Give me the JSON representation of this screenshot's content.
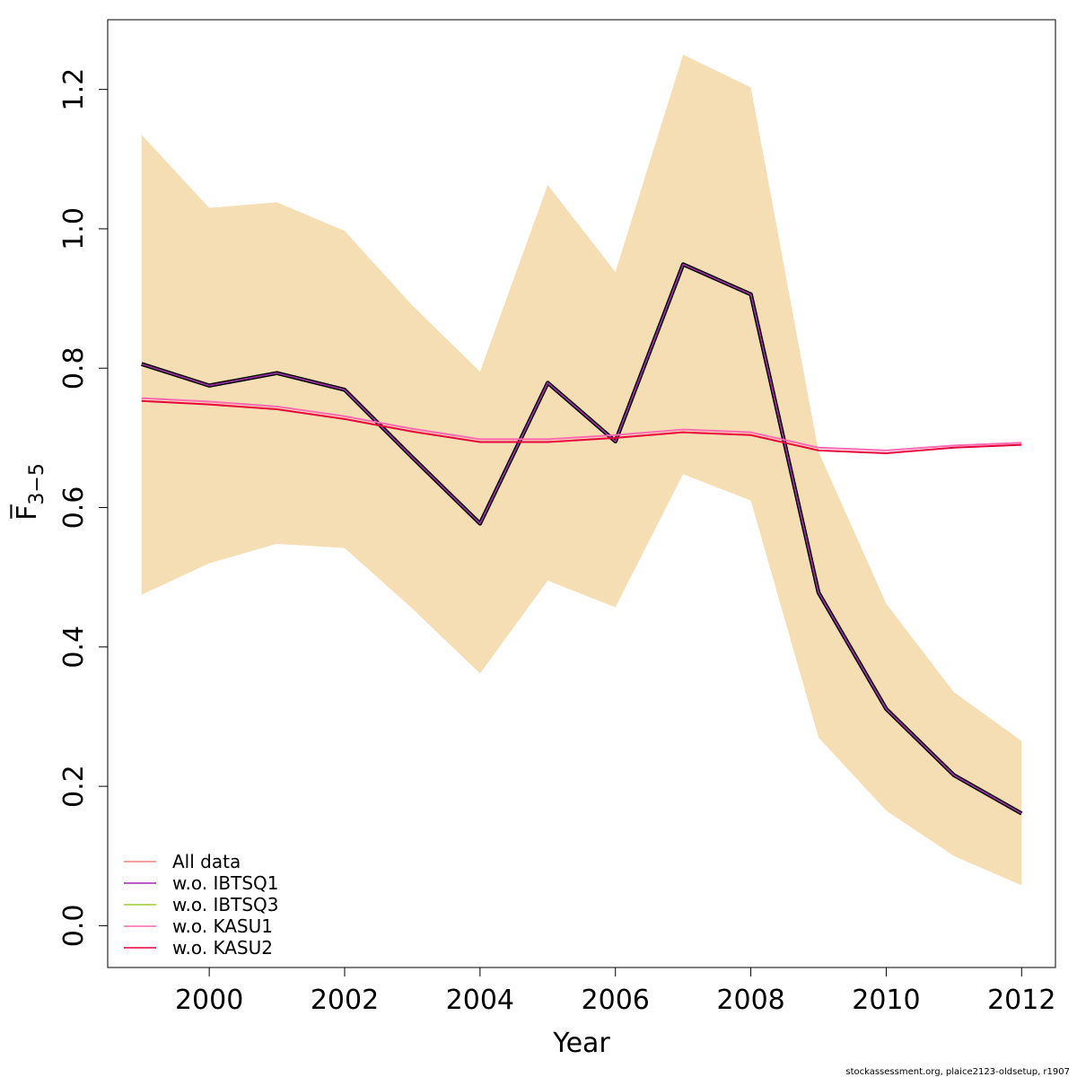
{
  "chart_data": {
    "type": "line",
    "xlabel": "Year",
    "ylabel": "F̅",
    "ylabel_sub": "3−5",
    "xlim": [
      1998.5,
      2012.5
    ],
    "ylim": [
      -0.06,
      1.3
    ],
    "x_ticks": [
      2000,
      2002,
      2004,
      2006,
      2008,
      2010,
      2012
    ],
    "y_ticks": [
      0.0,
      0.2,
      0.4,
      0.6,
      0.8,
      1.0,
      1.2
    ],
    "x_tick_labels": [
      "2000",
      "2002",
      "2004",
      "2006",
      "2008",
      "2010",
      "2012"
    ],
    "y_tick_labels": [
      "0.0",
      "0.2",
      "0.4",
      "0.6",
      "0.8",
      "1.0",
      "1.2"
    ],
    "x": [
      1999,
      2000,
      2001,
      2002,
      2003,
      2004,
      2005,
      2006,
      2007,
      2008,
      2009,
      2010,
      2011,
      2012
    ],
    "band": {
      "color": "#f5deb3",
      "lower": [
        0.475,
        0.52,
        0.548,
        0.542,
        0.455,
        0.362,
        0.495,
        0.457,
        0.648,
        0.61,
        0.27,
        0.165,
        0.1,
        0.058
      ],
      "upper": [
        1.135,
        1.03,
        1.038,
        0.997,
        0.89,
        0.795,
        1.063,
        0.938,
        1.25,
        1.203,
        0.68,
        0.462,
        0.335,
        0.265
      ]
    },
    "series": [
      {
        "name": "All data",
        "color": "#000000",
        "width": 4.5,
        "values": [
          0.806,
          0.775,
          0.793,
          0.769,
          0.672,
          0.577,
          0.779,
          0.695,
          0.949,
          0.906,
          0.478,
          0.311,
          0.216,
          0.161
        ]
      },
      {
        "name": "w.o. IBTSQ1",
        "color": "#9c27b0",
        "width": 1.5,
        "values": [
          0.806,
          0.775,
          0.793,
          0.769,
          0.672,
          0.577,
          0.779,
          0.695,
          0.949,
          0.906,
          0.478,
          0.311,
          0.216,
          0.161
        ]
      },
      {
        "name": "w.o. IBTSQ3",
        "color": "#9acd32",
        "width": 1.5,
        "values": [
          0.806,
          0.775,
          0.793,
          0.769,
          0.672,
          0.577,
          0.779,
          0.695,
          0.949,
          0.906,
          0.478,
          0.311,
          0.216,
          0.161
        ]
      },
      {
        "name": "w.o. KASU1",
        "color": "#ff69b4",
        "width": 2.0,
        "values": [
          0.757,
          0.752,
          0.745,
          0.731,
          0.713,
          0.698,
          0.698,
          0.704,
          0.712,
          0.708,
          0.686,
          0.682,
          0.689,
          0.693
        ]
      },
      {
        "name": "w.o. KASU2",
        "color": "#e8003a",
        "width": 2.0,
        "values": [
          0.753,
          0.748,
          0.741,
          0.727,
          0.709,
          0.694,
          0.694,
          0.7,
          0.708,
          0.704,
          0.682,
          0.678,
          0.686,
          0.69
        ]
      }
    ],
    "legend": {
      "placement": "bottom-left",
      "entries": [
        {
          "label": "All data",
          "color": "#f08080"
        },
        {
          "label": "w.o. IBTSQ1",
          "color": "#9c27b0"
        },
        {
          "label": "w.o. IBTSQ3",
          "color": "#9acd32"
        },
        {
          "label": "w.o. KASU1",
          "color": "#ff69b4"
        },
        {
          "label": "w.o. KASU2",
          "color": "#e8003a"
        }
      ]
    },
    "grid": false
  },
  "footer": "stockassessment.org, plaice2123-oldsetup, r1907"
}
